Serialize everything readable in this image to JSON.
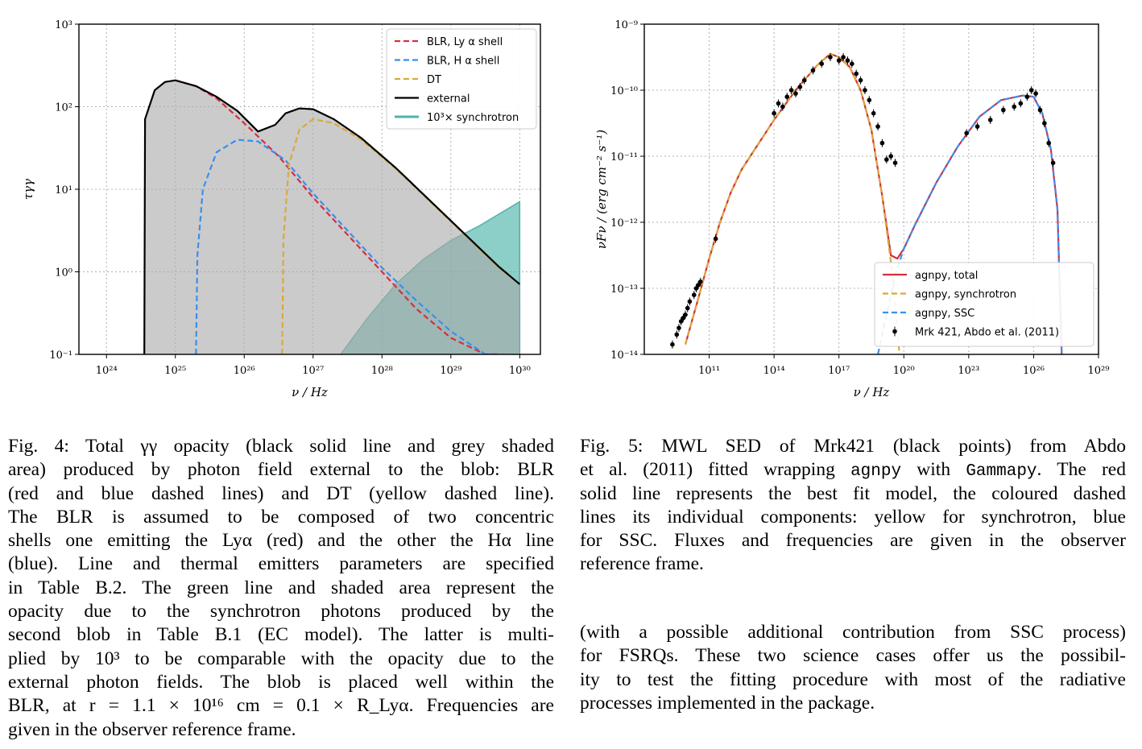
{
  "fig4": {
    "chart_data": {
      "type": "line",
      "xscale": "log",
      "yscale": "log",
      "xlim_exp": [
        23.6,
        30.3
      ],
      "ylim_exp": [
        -1,
        3
      ],
      "xticks": [
        "10²⁴",
        "10²⁵",
        "10²⁶",
        "10²⁷",
        "10²⁸",
        "10²⁹",
        "10³⁰"
      ],
      "yticks": [
        "10⁻¹",
        "10⁰",
        "10¹",
        "10²",
        "10³"
      ],
      "xlabel": "ν / Hz",
      "ylabel": "τγγ",
      "grid": true,
      "legend_position": "top-right",
      "series": [
        {
          "name": "BLR, Ly α shell",
          "style": "dashed",
          "color": "#d62f3f",
          "log_x": [
            25.0,
            25.3,
            25.6,
            26.0,
            26.5,
            27.0,
            27.5,
            28.0,
            28.5,
            29.0,
            29.5,
            29.7
          ],
          "log_y": [
            2.32,
            2.25,
            2.1,
            1.8,
            1.4,
            0.9,
            0.45,
            0.0,
            -0.45,
            -0.8,
            -1.0,
            -1.0
          ]
        },
        {
          "name": "BLR, H α shell",
          "style": "dashed",
          "color": "#3b8ef0",
          "log_x": [
            25.3,
            25.32,
            25.4,
            25.6,
            25.9,
            26.2,
            26.6,
            27.0,
            27.5,
            28.0,
            28.5,
            29.0,
            29.5,
            29.65
          ],
          "log_y": [
            -1.0,
            0.2,
            1.0,
            1.45,
            1.6,
            1.58,
            1.35,
            0.95,
            0.5,
            0.05,
            -0.35,
            -0.72,
            -1.0,
            -1.0
          ]
        },
        {
          "name": "DT",
          "style": "dashed",
          "color": "#d9a93c",
          "log_x": [
            26.55,
            26.57,
            26.65,
            26.8,
            27.0,
            27.3,
            27.7,
            28.2,
            28.7,
            29.2,
            29.7,
            30.0
          ],
          "log_y": [
            -1.0,
            0.4,
            1.3,
            1.72,
            1.85,
            1.8,
            1.6,
            1.25,
            0.85,
            0.45,
            0.05,
            -0.15
          ]
        },
        {
          "name": "external",
          "style": "solid",
          "color": "#000000",
          "log_x": [
            24.55,
            24.56,
            24.7,
            24.85,
            25.0,
            25.3,
            25.6,
            25.9,
            26.2,
            26.45,
            26.6,
            26.8,
            27.0,
            27.3,
            27.7,
            28.2,
            28.7,
            29.2,
            29.7,
            30.0
          ],
          "log_y": [
            -1.0,
            1.85,
            2.2,
            2.3,
            2.32,
            2.25,
            2.12,
            1.95,
            1.7,
            1.78,
            1.92,
            1.98,
            1.97,
            1.85,
            1.62,
            1.26,
            0.86,
            0.46,
            0.06,
            -0.15
          ]
        },
        {
          "name": "10³× synchrotron",
          "style": "fill",
          "color": "#4fb3aa",
          "log_x": [
            27.4,
            27.8,
            28.2,
            28.6,
            29.0,
            29.4,
            29.8,
            30.0
          ],
          "log_y": [
            -1.0,
            -0.55,
            -0.15,
            0.15,
            0.38,
            0.55,
            0.75,
            0.85
          ]
        }
      ]
    }
  },
  "fig5": {
    "chart_data": {
      "type": "line",
      "xscale": "log",
      "yscale": "log",
      "xlim_exp": [
        8,
        29
      ],
      "ylim_exp": [
        -14,
        -9
      ],
      "xticks": [
        "10¹¹",
        "10¹⁴",
        "10¹⁷",
        "10²⁰",
        "10²³",
        "10²⁶",
        "10²⁹"
      ],
      "yticks": [
        "10⁻¹⁴",
        "10⁻¹³",
        "10⁻¹²",
        "10⁻¹¹",
        "10⁻¹⁰",
        "10⁻⁹"
      ],
      "xlabel": "ν / Hz",
      "ylabel": "νFν / (erg cm⁻² s⁻¹)",
      "grid": true,
      "legend_position": "lower-right",
      "series": [
        {
          "name": "agnpy, total",
          "style": "solid",
          "color": "#d62f3f",
          "log_x": [
            9.9,
            10.5,
            11.0,
            11.5,
            12.0,
            12.5,
            13.0,
            14.0,
            15.0,
            16.0,
            16.6,
            17.0,
            17.5,
            18.0,
            18.5,
            19.0,
            19.4,
            19.7,
            20.0,
            20.5,
            21.5,
            22.5,
            23.5,
            24.5,
            25.5,
            26.0,
            26.4,
            26.8,
            27.1,
            27.3
          ],
          "log_y": [
            -13.85,
            -13.15,
            -12.55,
            -12.0,
            -11.55,
            -11.2,
            -10.95,
            -10.45,
            -10.0,
            -9.62,
            -9.45,
            -9.5,
            -9.65,
            -10.0,
            -10.6,
            -11.6,
            -12.5,
            -12.55,
            -12.4,
            -12.05,
            -11.4,
            -10.85,
            -10.4,
            -10.15,
            -10.08,
            -10.1,
            -10.35,
            -10.9,
            -11.8,
            -14.0
          ]
        },
        {
          "name": "agnpy, synchrotron",
          "style": "dashed",
          "color": "#d9a93c",
          "log_x": [
            9.9,
            10.5,
            11.0,
            11.5,
            12.0,
            12.5,
            13.0,
            14.0,
            15.0,
            16.0,
            16.6,
            17.0,
            17.5,
            18.0,
            18.5,
            19.0,
            19.4,
            19.6,
            19.8
          ],
          "log_y": [
            -13.85,
            -13.15,
            -12.55,
            -12.0,
            -11.55,
            -11.2,
            -10.95,
            -10.45,
            -10.0,
            -9.62,
            -9.45,
            -9.5,
            -9.65,
            -10.0,
            -10.6,
            -11.6,
            -12.6,
            -13.3,
            -14.0
          ]
        },
        {
          "name": "agnpy, SSC",
          "style": "dashed",
          "color": "#3b8ef0",
          "log_x": [
            18.8,
            19.2,
            19.6,
            20.0,
            20.5,
            21.5,
            22.5,
            23.5,
            24.5,
            25.5,
            26.0,
            26.4,
            26.8,
            27.1,
            27.3
          ],
          "log_y": [
            -14.0,
            -13.4,
            -12.8,
            -12.4,
            -12.05,
            -11.4,
            -10.85,
            -10.4,
            -10.15,
            -10.08,
            -10.1,
            -10.35,
            -10.9,
            -11.8,
            -14.0
          ]
        },
        {
          "name": "Mrk 421, Abdo et al. (2011)",
          "style": "points",
          "color": "#000000",
          "log_x": [
            9.3,
            9.5,
            9.6,
            9.7,
            9.8,
            9.9,
            10.0,
            10.1,
            10.3,
            10.4,
            10.5,
            10.6,
            11.3,
            14.0,
            14.2,
            14.4,
            14.6,
            14.8,
            15.0,
            15.2,
            15.4,
            15.8,
            16.2,
            16.6,
            17.0,
            17.2,
            17.4,
            17.6,
            17.8,
            18.0,
            18.2,
            18.4,
            18.6,
            18.8,
            19.0,
            19.2,
            19.4,
            19.6,
            22.9,
            23.4,
            24.0,
            24.6,
            25.1,
            25.4,
            25.7,
            25.9,
            26.1,
            26.3,
            26.5,
            26.7,
            26.9
          ],
          "log_y": [
            -13.85,
            -13.7,
            -13.6,
            -13.5,
            -13.45,
            -13.4,
            -13.3,
            -13.2,
            -13.1,
            -13.0,
            -12.95,
            -12.9,
            -12.25,
            -10.35,
            -10.2,
            -10.25,
            -10.1,
            -10.0,
            -10.05,
            -9.95,
            -9.85,
            -9.7,
            -9.6,
            -9.5,
            -9.55,
            -9.5,
            -9.55,
            -9.6,
            -9.75,
            -9.85,
            -10.0,
            -10.15,
            -10.35,
            -10.55,
            -10.8,
            -11.05,
            -11.0,
            -11.1,
            -10.65,
            -10.55,
            -10.45,
            -10.3,
            -10.25,
            -10.2,
            -10.1,
            -10.0,
            -10.05,
            -10.3,
            -10.5,
            -10.8,
            -11.1
          ]
        }
      ]
    }
  },
  "caption4": {
    "lines": [
      "Fig. 4: Total γγ opacity (black solid line and grey shaded",
      "area) produced by photon field external to the blob: BLR",
      "(red and blue dashed lines) and DT (yellow dashed line).",
      "The BLR is assumed to be composed of two concentric",
      "shells one emitting the Lyα (red) and the other the Hα line",
      "(blue). Line and thermal emitters parameters are specified",
      "in Table B.2. The green line and shaded area represent the",
      "opacity due to the synchrotron photons produced by the",
      "second blob in Table B.1 (EC model). The latter is multi-",
      "plied by 10³ to be comparable with the opacity due to the",
      "external photon fields. The blob is placed well within the",
      "BLR, at r = 1.1 × 10¹⁶ cm = 0.1 × R_Lyα. Frequencies are",
      "given in the observer reference frame."
    ]
  },
  "caption5": {
    "line1": "Fig. 5: MWL SED of Mrk421 (black points) from Abdo",
    "line2_a": "et al. (2011) fitted wrapping ",
    "line2_code1": "agnpy",
    "line2_b": " with ",
    "line2_code2": "Gammapy",
    "line2_c": ". The red",
    "lines_rest": [
      "solid line represents the best fit model, the coloured dashed",
      "lines its individual components: yellow for synchrotron, blue",
      "for SSC. Fluxes and frequencies are given in the observer",
      "reference frame."
    ]
  },
  "body_text": {
    "lines": [
      "(with a possible additional contribution from SSC process)",
      "for FSRQs. These two science cases offer us the possibil-",
      "ity to test the fitting procedure with most of the radiative",
      "processes implemented in the package."
    ]
  }
}
